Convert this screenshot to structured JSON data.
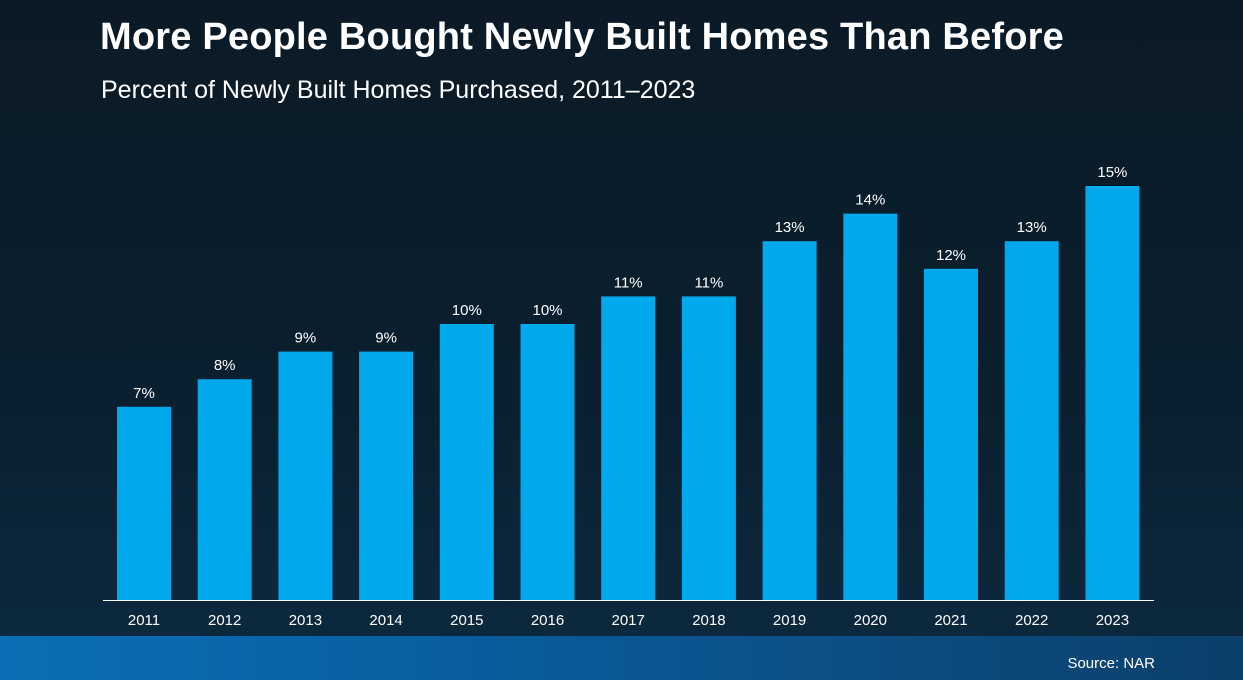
{
  "header": {
    "title": "More People Bought Newly Built Homes Than Before",
    "subtitle": "Percent of Newly Built Homes Purchased, 2011–2023"
  },
  "footer": {
    "source": "Source: NAR"
  },
  "colors": {
    "bar": "#00a8ec",
    "axis": "#ffffff",
    "text": "#ffffff"
  },
  "chart_data": {
    "type": "bar",
    "title": "More People Bought Newly Built Homes Than Before",
    "subtitle": "Percent of Newly Built Homes Purchased, 2011–2023",
    "categories": [
      "2011",
      "2012",
      "2013",
      "2014",
      "2015",
      "2016",
      "2017",
      "2018",
      "2019",
      "2020",
      "2021",
      "2022",
      "2023"
    ],
    "values": [
      7,
      8,
      9,
      9,
      10,
      10,
      11,
      11,
      13,
      14,
      12,
      13,
      15
    ],
    "data_labels": [
      "7%",
      "8%",
      "9%",
      "9%",
      "10%",
      "10%",
      "11%",
      "11%",
      "13%",
      "14%",
      "12%",
      "13%",
      "15%"
    ],
    "xlabel": "",
    "ylabel": "",
    "ylim": [
      0,
      15
    ],
    "grid": false,
    "legend": "none"
  }
}
